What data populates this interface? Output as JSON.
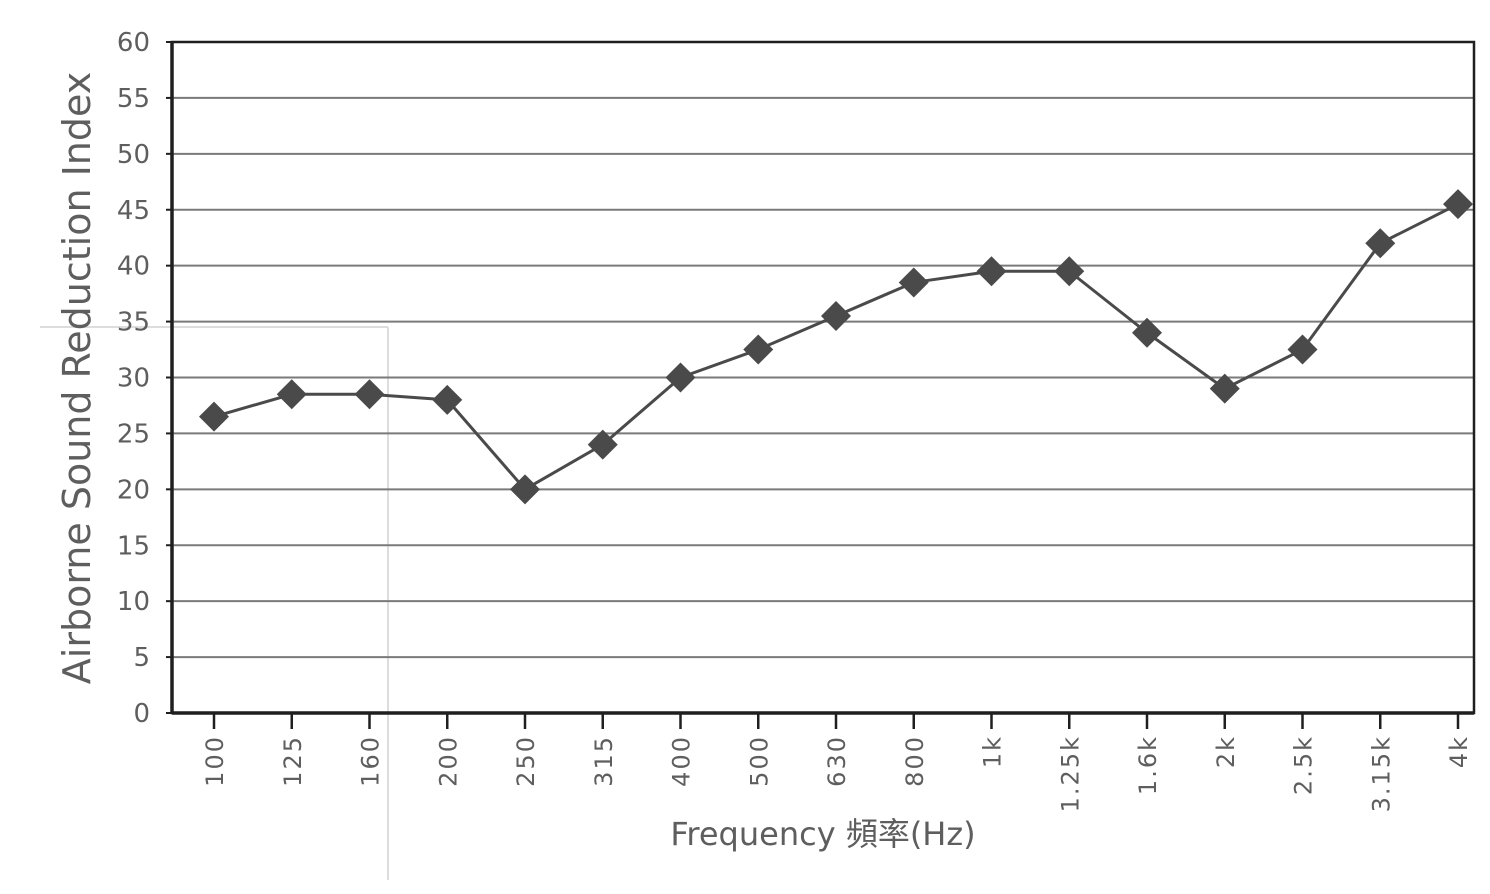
{
  "chart_data": {
    "type": "line",
    "ylabel": "Airborne Sound Reduction Index",
    "xlabel": "Frequency 頻率(Hz)",
    "categories": [
      "100",
      "125",
      "160",
      "200",
      "250",
      "315",
      "400",
      "500",
      "630",
      "800",
      "1k",
      "1.25k",
      "1.6k",
      "2k",
      "2.5k",
      "3.15k",
      "4k"
    ],
    "values": [
      26.5,
      28.5,
      28.5,
      28,
      20,
      24,
      30,
      32.5,
      35.5,
      38.5,
      39.5,
      39.5,
      34,
      29,
      32.5,
      42,
      45.5
    ],
    "y_ticks": [
      "0",
      "5",
      "10",
      "15",
      "20",
      "25",
      "30",
      "35",
      "40",
      "45",
      "50",
      "55",
      "60"
    ],
    "ylim": [
      0,
      60
    ],
    "grid": true,
    "marker": "diamond",
    "legend": false,
    "colors": {
      "line": "#4a4a4a",
      "marker": "#4a4a4a",
      "grid": "#7a7a7a",
      "axis": "#1f1f1f",
      "text": "#5e5e5e"
    }
  }
}
